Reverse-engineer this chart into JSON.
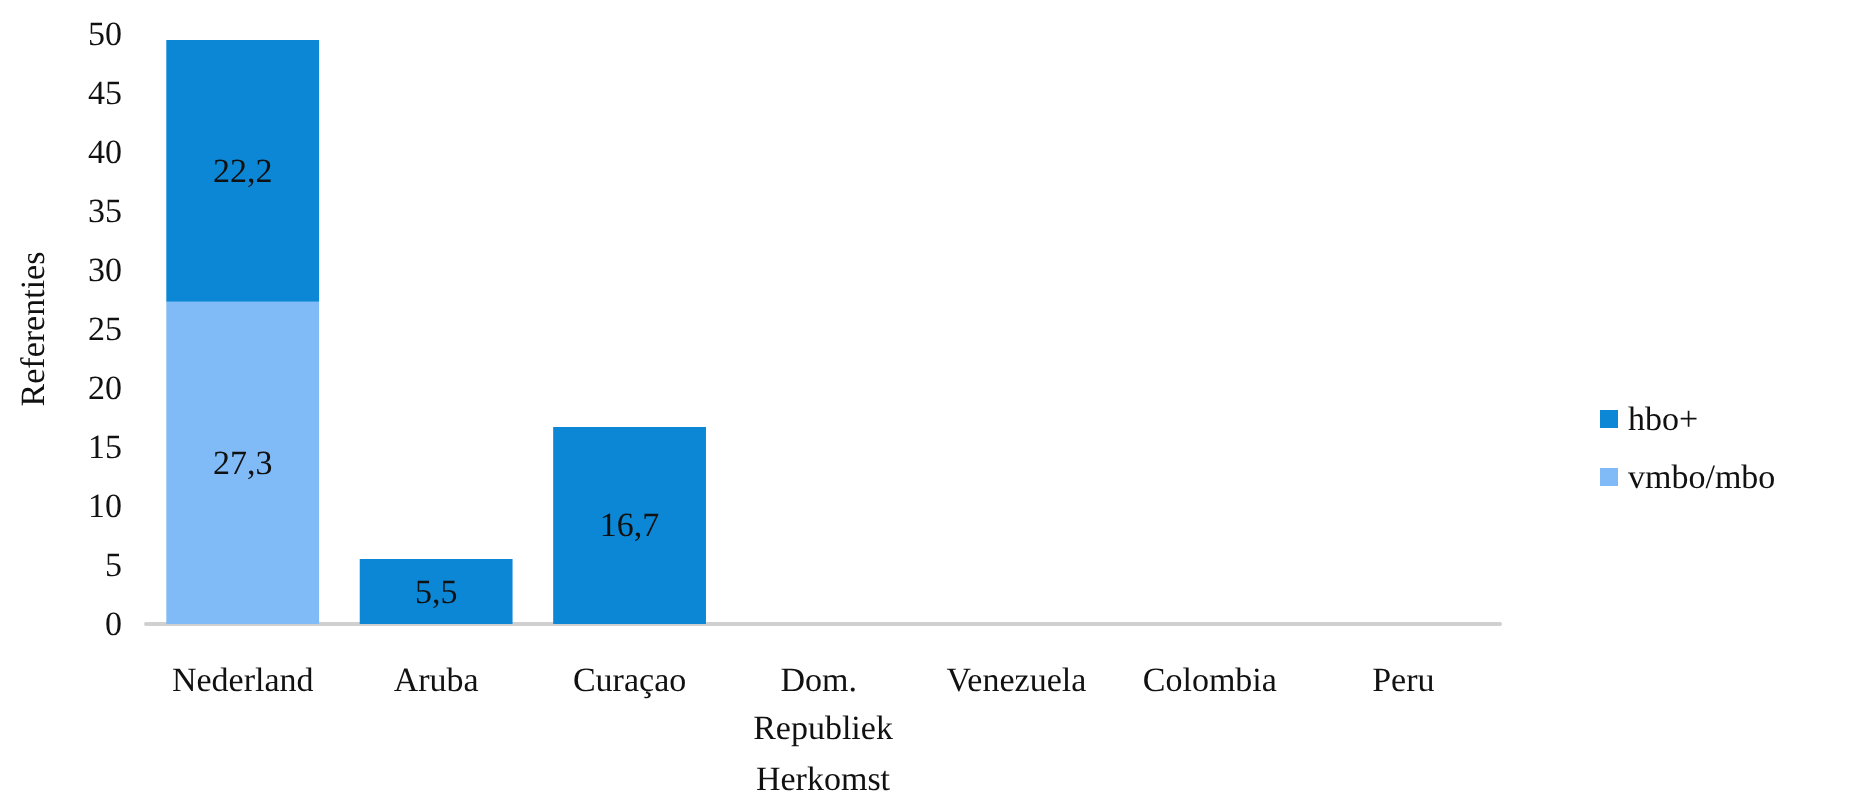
{
  "chart_data": {
    "type": "bar",
    "stacked": true,
    "xlabel": "Herkomst",
    "ylabel": "Referenties",
    "categories": [
      "Nederland",
      "Aruba",
      "Curaçao",
      "Dom. Republiek",
      "Venezuela",
      "Colombia",
      "Peru"
    ],
    "series": [
      {
        "name": "vmbo/mbo",
        "color": "#80bbf7",
        "values": [
          27.3,
          null,
          null,
          null,
          null,
          null,
          null
        ],
        "value_labels": [
          "27,3",
          null,
          null,
          null,
          null,
          null,
          null
        ]
      },
      {
        "name": "hbo+",
        "color": "#0b87d6",
        "values": [
          22.2,
          5.5,
          16.7,
          null,
          null,
          null,
          null
        ],
        "value_labels": [
          "22,2",
          "5,5",
          "16,7",
          null,
          null,
          null,
          null
        ]
      }
    ],
    "ylim": [
      0,
      50
    ],
    "yticks": [
      0,
      5,
      10,
      15,
      20,
      25,
      30,
      35,
      40,
      45,
      50
    ],
    "grid": false,
    "legend": "right"
  }
}
